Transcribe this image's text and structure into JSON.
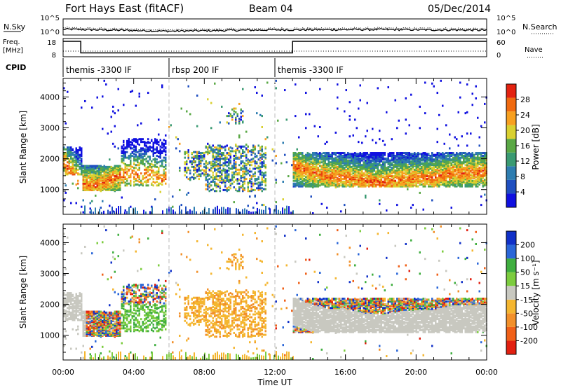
{
  "header": {
    "station": "Fort Hays East (fitACF)",
    "beam": "Beam 04",
    "date": "05/Dec/2014"
  },
  "noise_panel": {
    "left_label": "N.Sky",
    "right_label": "N.Search",
    "left_ticks": [
      "10^5",
      "10^0"
    ],
    "right_ticks": [
      "10^5",
      "10^0"
    ]
  },
  "freq_panel": {
    "left_label_1": "Freq.",
    "left_label_2": "[MHz]",
    "right_label": "Nave",
    "left_ticks": [
      "18",
      "8"
    ],
    "right_ticks": [
      "60",
      "0"
    ]
  },
  "cpid": {
    "label": "CPID",
    "segments": [
      {
        "name": "themis -3300 IF",
        "start_hour": 0,
        "end_hour": 6
      },
      {
        "name": "rbsp 200 IF",
        "start_hour": 6,
        "end_hour": 12
      },
      {
        "name": "themis -3300 IF",
        "start_hour": 12,
        "end_hour": 24
      }
    ]
  },
  "colorbars": {
    "power": {
      "label": "Power [dB]",
      "ticks": [
        "28",
        "24",
        "20",
        "16",
        "12",
        "8",
        "4"
      ]
    },
    "velocity": {
      "label": "Velocity [m s⁻¹]",
      "ticks": [
        "200",
        "100",
        "50",
        "15",
        "-15",
        "-50",
        "-100",
        "-200"
      ]
    }
  },
  "chart_data": {
    "type": "heatmap",
    "xlabel": "Time UT",
    "x_ticks": [
      "00:00",
      "04:00",
      "08:00",
      "12:00",
      "16:00",
      "20:00",
      "00:00"
    ],
    "xlim_hours": [
      0,
      24
    ],
    "ylabel": "Slant Range [km]",
    "y_ticks": [
      "4000",
      "3000",
      "2000",
      "1000"
    ],
    "ylim_km": [
      200,
      4600
    ],
    "panels": [
      {
        "name": "power",
        "colors": [
          "#1010e0",
          "#1f4fc0",
          "#2e7db0",
          "#3a9a72",
          "#5aa845",
          "#d9d030",
          "#f7a020",
          "#f06a10",
          "#e32210"
        ]
      },
      {
        "name": "velocity",
        "colors": [
          "#1030c8",
          "#2a66d8",
          "#3fae3f",
          "#7ccc3e",
          "#c8c8c0",
          "#f4b630",
          "#f2902a",
          "#f06018",
          "#e22010"
        ]
      }
    ],
    "echo_regions": [
      {
        "t0": 0.0,
        "t1": 1.0,
        "r_lo": 1450,
        "r_hi": 2350,
        "p": 0.55
      },
      {
        "t0": 1.0,
        "t1": 3.2,
        "r_lo": 950,
        "r_hi": 1750,
        "p": 0.75
      },
      {
        "t0": 3.2,
        "t1": 5.8,
        "r_lo": 1100,
        "r_hi": 2600,
        "p": 0.35
      },
      {
        "t0": 6.8,
        "t1": 9.8,
        "r_lo": 1300,
        "r_hi": 2200,
        "p": 0.35
      },
      {
        "t0": 8.0,
        "t1": 11.5,
        "r_lo": 900,
        "r_hi": 2400,
        "p": 0.3
      },
      {
        "t0": 9.2,
        "t1": 10.2,
        "r_lo": 3100,
        "r_hi": 3600,
        "p": 0.2
      },
      {
        "t0": 13.0,
        "t1": 24.0,
        "r_lo": 1050,
        "r_hi": 2150,
        "p": 0.7
      },
      {
        "t0": 0.0,
        "t1": 24.0,
        "r_lo": 200,
        "r_hi": 4500,
        "p": 0.01
      }
    ],
    "mean_level": {
      "t": [
        0,
        1,
        1.8,
        2.6,
        3.4,
        4.4,
        5.6,
        13,
        14,
        15,
        16,
        17,
        18,
        19,
        20,
        21,
        22,
        23,
        24
      ],
      "r": [
        1850,
        1150,
        1100,
        1300,
        1450,
        1500,
        1300,
        1750,
        1550,
        1400,
        1380,
        1250,
        1200,
        1300,
        1350,
        1350,
        1500,
        1500,
        1550
      ]
    },
    "noise_series": {
      "t": [
        0,
        6,
        12,
        18,
        24
      ],
      "log_n_sky": [
        1.8,
        1.2,
        1.6,
        1.7,
        1.5
      ]
    },
    "freq_series": {
      "t": [
        0,
        1,
        13,
        24
      ],
      "freq_mhz": [
        18,
        10.5,
        18,
        18
      ]
    }
  }
}
